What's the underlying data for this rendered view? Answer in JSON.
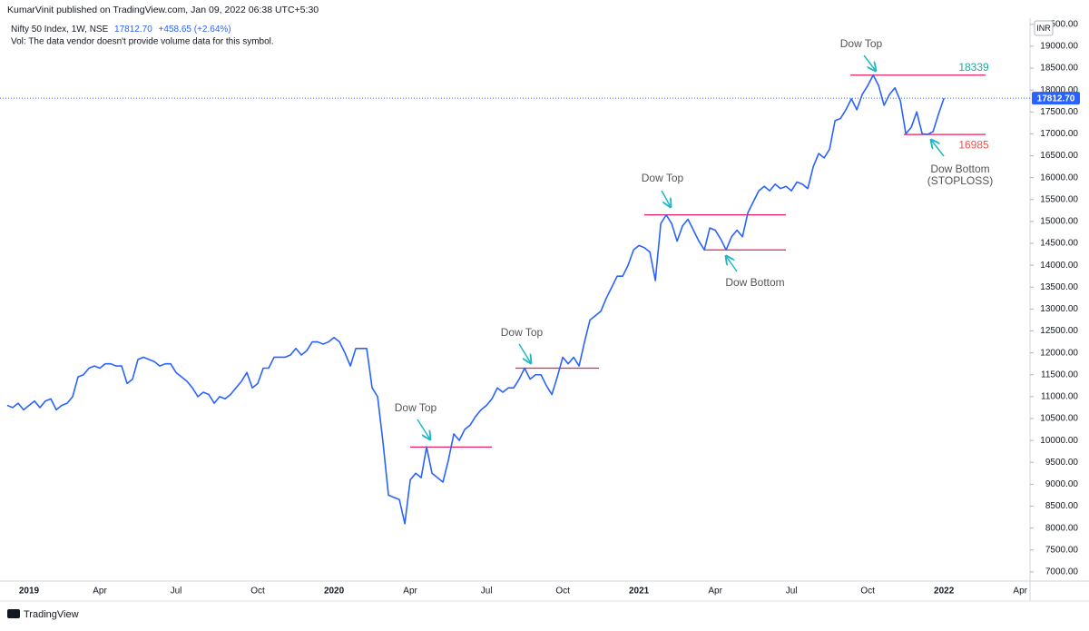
{
  "chart_data": {
    "type": "line",
    "title": "KumarVinit published on TradingView.com, Jan 09, 2022 06:38 UTC+5:30",
    "subtitle": "Vol: The data vendor doesn't provide volume data for this symbol.",
    "currency": "INR",
    "brand": "TradingView",
    "series": [
      {
        "name": "Nifty 50 Index, 1W, NSE",
        "color": "#2962ff",
        "last_label": "17812.70",
        "change_label": "+458.65 (+2.64%)",
        "values": [
          10800,
          10750,
          10850,
          10700,
          10800,
          10900,
          10750,
          10900,
          10950,
          10700,
          10800,
          10850,
          11000,
          11450,
          11500,
          11650,
          11700,
          11650,
          11750,
          11750,
          11700,
          11700,
          11300,
          11400,
          11850,
          11900,
          11850,
          11800,
          11700,
          11750,
          11750,
          11550,
          11450,
          11350,
          11200,
          11000,
          11100,
          11050,
          10850,
          11000,
          10950,
          11050,
          11200,
          11350,
          11550,
          11200,
          11300,
          11650,
          11650,
          11900,
          11900,
          11900,
          11950,
          12100,
          11950,
          12050,
          12250,
          12250,
          12200,
          12250,
          12350,
          12250,
          12000,
          11700,
          12100,
          12100,
          12100,
          11200,
          11000,
          9950,
          8750,
          8700,
          8650,
          8100,
          9100,
          9250,
          9150,
          9850,
          9250,
          9150,
          9050,
          9550,
          10150,
          10000,
          10250,
          10350,
          10550,
          10700,
          10800,
          10950,
          11200,
          11100,
          11200,
          11200,
          11400,
          11650,
          11400,
          11500,
          11500,
          11250,
          11050,
          11450,
          11900,
          11750,
          11900,
          11700,
          12250,
          12750,
          12850,
          12950,
          13250,
          13500,
          13750,
          13750,
          14000,
          14350,
          14450,
          14400,
          14300,
          13650,
          14950,
          15150,
          14950,
          14550,
          14900,
          15050,
          14800,
          14550,
          14350,
          14850,
          14800,
          14600,
          14350,
          14650,
          14800,
          14650,
          15200,
          15450,
          15700,
          15800,
          15700,
          15850,
          15750,
          15800,
          15700,
          15900,
          15850,
          15750,
          16250,
          16550,
          16450,
          16650,
          17300,
          17350,
          17550,
          17800,
          17550,
          17900,
          18100,
          18339,
          18100,
          17650,
          17900,
          18050,
          17750,
          17000,
          17150,
          17500,
          17000,
          16985,
          17050,
          17450,
          17812.7,
          null,
          null,
          null,
          null,
          null,
          null,
          null,
          null,
          null,
          null,
          null,
          null,
          null,
          null,
          null
        ]
      }
    ],
    "categories": [
      null,
      null,
      null,
      null,
      "2019",
      null,
      null,
      null,
      null,
      null,
      null,
      null,
      null,
      null,
      null,
      null,
      null,
      "Apr",
      null,
      null,
      null,
      null,
      null,
      null,
      null,
      null,
      null,
      null,
      null,
      null,
      null,
      "Jul",
      null,
      null,
      null,
      null,
      null,
      null,
      null,
      null,
      null,
      null,
      null,
      null,
      null,
      null,
      "Oct",
      null,
      null,
      null,
      null,
      null,
      null,
      null,
      null,
      null,
      null,
      null,
      null,
      null,
      "2020",
      null,
      null,
      null,
      null,
      null,
      null,
      null,
      null,
      null,
      null,
      null,
      null,
      null,
      "Apr",
      null,
      null,
      null,
      null,
      null,
      null,
      null,
      null,
      null,
      null,
      null,
      null,
      null,
      "Jul",
      null,
      null,
      null,
      null,
      null,
      null,
      null,
      null,
      null,
      null,
      null,
      null,
      null,
      "Oct",
      null,
      null,
      null,
      null,
      null,
      null,
      null,
      null,
      null,
      null,
      null,
      null,
      null,
      "2021",
      null,
      null,
      null,
      null,
      null,
      null,
      null,
      null,
      null,
      null,
      null,
      null,
      null,
      "Apr",
      null,
      null,
      null,
      null,
      null,
      null,
      null,
      null,
      null,
      null,
      null,
      null,
      null,
      "Jul",
      null,
      null,
      null,
      null,
      null,
      null,
      null,
      null,
      null,
      null,
      null,
      null,
      null,
      "Oct",
      null,
      null,
      null,
      null,
      null,
      null,
      null,
      null,
      null,
      null,
      null,
      null,
      null,
      "2022",
      null,
      null,
      null,
      null,
      null,
      null,
      null,
      null,
      null,
      null,
      null,
      null,
      null,
      "Apr",
      null
    ],
    "ylim": [
      6790,
      19640
    ],
    "yticks": [
      {
        "value": 7000,
        "label": "7000.00"
      },
      {
        "value": 7500,
        "label": "7500.00"
      },
      {
        "value": 8000,
        "label": "8000.00"
      },
      {
        "value": 8500,
        "label": "8500.00"
      },
      {
        "value": 9000,
        "label": "9000.00"
      },
      {
        "value": 9500,
        "label": "9500.00"
      },
      {
        "value": 10000,
        "label": "10000.00"
      },
      {
        "value": 10500,
        "label": "10500.00"
      },
      {
        "value": 11000,
        "label": "11000.00"
      },
      {
        "value": 11500,
        "label": "11500.00"
      },
      {
        "value": 12000,
        "label": "12000.00"
      },
      {
        "value": 12500,
        "label": "12500.00"
      },
      {
        "value": 13000,
        "label": "13000.00"
      },
      {
        "value": 13500,
        "label": "13500.00"
      },
      {
        "value": 14000,
        "label": "14000.00"
      },
      {
        "value": 14500,
        "label": "14500.00"
      },
      {
        "value": 15000,
        "label": "15000.00"
      },
      {
        "value": 15500,
        "label": "15500.00"
      },
      {
        "value": 16000,
        "label": "16000.00"
      },
      {
        "value": 16500,
        "label": "16500.00"
      },
      {
        "value": 17000,
        "label": "17000.00"
      },
      {
        "value": 17500,
        "label": "17500.00"
      },
      {
        "value": 18000,
        "label": "18000.00"
      },
      {
        "value": 18500,
        "label": "18500.00"
      },
      {
        "value": 19000,
        "label": "19000.00"
      },
      {
        "value": 19500,
        "label": "19500.00"
      }
    ],
    "grid": false,
    "levels": [
      {
        "value": 9850,
        "color": "#e91e63"
      },
      {
        "value": 11650,
        "color": "#e91e63"
      },
      {
        "value": 15150,
        "color": "#e91e63"
      },
      {
        "value": 14350,
        "color": "#e91e63"
      },
      {
        "value": 18339,
        "color": "#e91e63",
        "label_color": "#26a69a"
      },
      {
        "value": 16985,
        "color": "#e91e63",
        "label_color": "#ef5350"
      }
    ],
    "annotations": [
      {
        "lines": [
          "Dow Top"
        ]
      },
      {
        "lines": [
          "Dow Top"
        ]
      },
      {
        "lines": [
          "Dow Top"
        ]
      },
      {
        "lines": [
          "Dow Bottom"
        ]
      },
      {
        "lines": [
          "Dow Top"
        ]
      },
      {
        "lines": [
          "Dow Bottom",
          "(STOPLOSS)"
        ]
      }
    ],
    "arrow_color": "#1fb8c4"
  }
}
